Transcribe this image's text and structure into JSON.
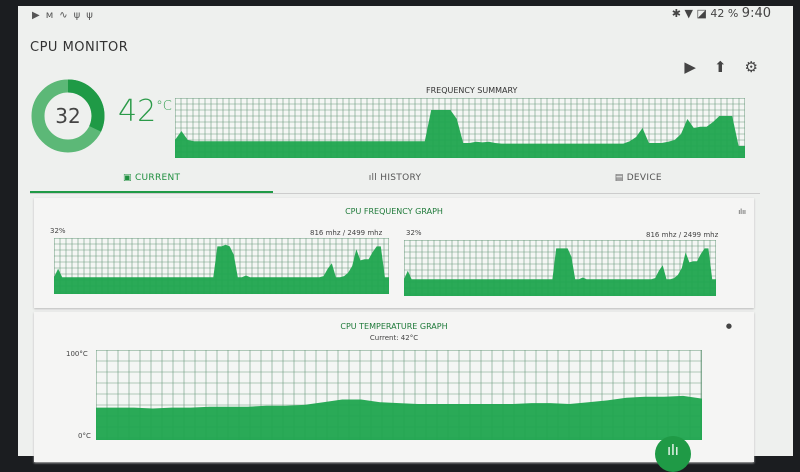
{
  "status_bar": {
    "left_icons": [
      "play-icon",
      "m-icon",
      "pulse-icon",
      "usb-icon",
      "usb-icon"
    ],
    "battery": "42 %",
    "time": "9:40"
  },
  "app": {
    "title": "CPU MONITOR"
  },
  "header": {
    "cpu_usage": "32",
    "cpu_usage_percent": 32,
    "temperature": "42",
    "temperature_unit": "°C",
    "actions": [
      "play-store-icon",
      "upload-icon",
      "gear-icon"
    ]
  },
  "summary": {
    "title": "FREQUENCY SUMMARY",
    "values": [
      30,
      45,
      30,
      28,
      28,
      28,
      28,
      28,
      28,
      28,
      28,
      28,
      28,
      28,
      28,
      28,
      28,
      28,
      28,
      28,
      28,
      28,
      28,
      28,
      28,
      28,
      28,
      28,
      28,
      28,
      28,
      28,
      28,
      28,
      28,
      28,
      28,
      28,
      28,
      28,
      80,
      80,
      80,
      80,
      65,
      25,
      25,
      27,
      26,
      27,
      25,
      24,
      24,
      24,
      24,
      24,
      24,
      24,
      24,
      24,
      24,
      24,
      24,
      24,
      24,
      24,
      24,
      24,
      24,
      24,
      24,
      28,
      35,
      50,
      25,
      25,
      25,
      27,
      30,
      40,
      65,
      50,
      52,
      52,
      60,
      70,
      70,
      70,
      20,
      20
    ],
    "colors": {
      "fill": "#1fa54e",
      "grid": "#5f8f72"
    }
  },
  "tabs": [
    {
      "label": "CURRENT",
      "icon": "chip-icon",
      "active": true
    },
    {
      "label": "HISTORY",
      "icon": "bar-chart-icon"
    },
    {
      "label": "DEVICE",
      "icon": "device-icon"
    }
  ],
  "freq_card": {
    "title": "CPU FREQUENCY GRAPH",
    "icon": "waveform-icon",
    "cores": [
      {
        "percent": "32%",
        "freq": "816 mhz / 2499 mhz",
        "values": [
          30,
          45,
          30,
          30,
          30,
          30,
          30,
          30,
          30,
          30,
          30,
          30,
          30,
          30,
          30,
          30,
          30,
          30,
          30,
          30,
          30,
          30,
          30,
          30,
          30,
          30,
          30,
          30,
          30,
          30,
          30,
          30,
          30,
          30,
          30,
          30,
          30,
          30,
          30,
          30,
          85,
          85,
          88,
          85,
          70,
          30,
          30,
          33,
          30,
          30,
          30,
          30,
          30,
          30,
          30,
          30,
          30,
          30,
          30,
          30,
          30,
          30,
          30,
          30,
          30,
          30,
          32,
          45,
          55,
          30,
          30,
          32,
          38,
          50,
          80,
          60,
          62,
          62,
          75,
          85,
          85,
          30,
          30
        ]
      },
      {
        "percent": "32%",
        "freq": "816 mhz / 2499 mhz",
        "values": [
          30,
          45,
          30,
          30,
          30,
          30,
          30,
          30,
          30,
          30,
          30,
          30,
          30,
          30,
          30,
          30,
          30,
          30,
          30,
          30,
          30,
          30,
          30,
          30,
          30,
          30,
          30,
          30,
          30,
          30,
          30,
          30,
          30,
          30,
          30,
          30,
          30,
          30,
          30,
          30,
          85,
          85,
          85,
          85,
          70,
          30,
          30,
          33,
          30,
          30,
          30,
          30,
          30,
          30,
          30,
          30,
          30,
          30,
          30,
          30,
          30,
          30,
          30,
          30,
          30,
          30,
          32,
          45,
          55,
          30,
          30,
          32,
          38,
          50,
          78,
          60,
          62,
          62,
          75,
          85,
          85,
          30,
          30
        ]
      }
    ]
  },
  "temp_card": {
    "title": "CPU TEMPERATURE GRAPH",
    "icon": "thermometer-icon",
    "current": "Current:  42°C",
    "y_max_label": "100°C",
    "y_min_label": "0°C",
    "values": [
      36,
      36,
      36,
      35,
      36,
      36,
      37,
      37,
      37,
      38,
      38,
      39,
      42,
      45,
      45,
      42,
      41,
      40,
      40,
      40,
      40,
      40,
      40,
      41,
      41,
      40,
      42,
      44,
      47,
      48,
      48,
      49,
      46
    ]
  },
  "fab": {
    "icon": "graph-icon"
  }
}
